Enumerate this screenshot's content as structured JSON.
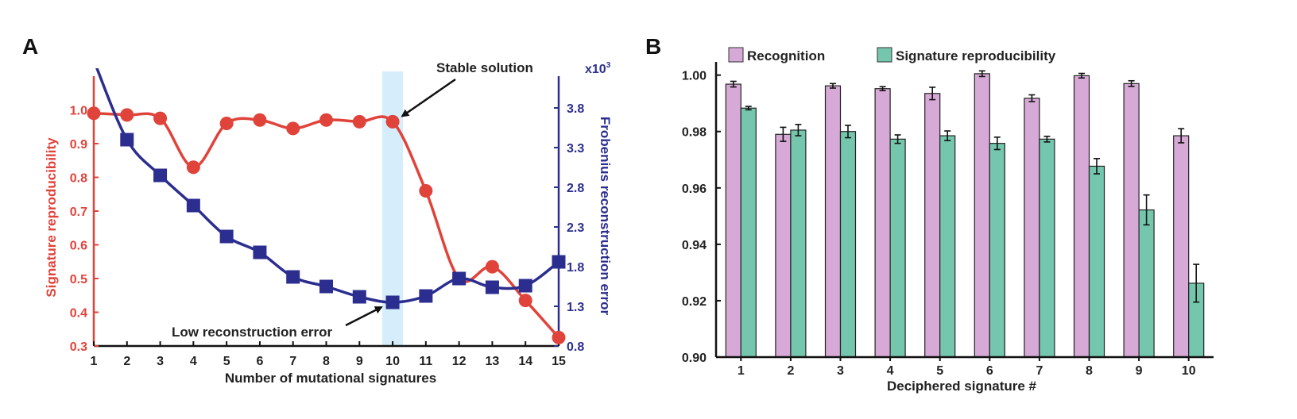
{
  "chart_data": [
    {
      "panel": "A",
      "type": "line",
      "xlabel": "Number of mutational signatures",
      "ylabel": "Signature reproducibility",
      "y2label": "Frobenius reconstruction error",
      "y2_multiplier": "x10",
      "y2_multiplier_exp": "3",
      "x": [
        1,
        2,
        3,
        4,
        5,
        6,
        7,
        8,
        9,
        10,
        11,
        12,
        13,
        14,
        15
      ],
      "x_ticks": [
        "1",
        "2",
        "3",
        "4",
        "5",
        "6",
        "7",
        "8",
        "9",
        "10",
        "11",
        "12",
        "13",
        "14",
        "15"
      ],
      "ylim": [
        0.3,
        1.1
      ],
      "y_ticks": [
        "0.3",
        "0.4",
        "0.5",
        "0.6",
        "0.7",
        "0.8",
        "0.9",
        "1.0"
      ],
      "y2lim": [
        0.8,
        4.2
      ],
      "y2_ticks": [
        "0.8",
        "1.3",
        "1.8",
        "2.3",
        "2.8",
        "3.3",
        "3.8"
      ],
      "series": [
        {
          "name": "Signature reproducibility",
          "axis": "left",
          "color": "#e0433a",
          "marker": "circle",
          "values": [
            0.99,
            0.985,
            0.975,
            0.83,
            0.96,
            0.97,
            0.945,
            0.97,
            0.965,
            0.965,
            0.76,
            0.5,
            0.535,
            0.435,
            0.325
          ]
        },
        {
          "name": "Frobenius reconstruction error",
          "axis": "right",
          "color": "#2b2e8f",
          "marker": "square",
          "values": [
            4.4,
            3.4,
            2.95,
            2.57,
            2.18,
            1.98,
            1.67,
            1.55,
            1.42,
            1.35,
            1.43,
            1.65,
            1.54,
            1.56,
            1.86
          ]
        }
      ],
      "highlight_x": 10,
      "highlight_color": "#d6eefc",
      "annotations": [
        {
          "text": "Stable solution",
          "points_to_x": 10,
          "series": "Signature reproducibility"
        },
        {
          "text": "Low reconstruction error",
          "points_to_x": 10,
          "series": "Frobenius reconstruction error"
        }
      ]
    },
    {
      "panel": "B",
      "type": "bar",
      "xlabel": "Deciphered signature #",
      "ylabel": "",
      "categories": [
        "1",
        "2",
        "3",
        "4",
        "5",
        "6",
        "7",
        "8",
        "9",
        "10"
      ],
      "ylim": [
        0.9,
        1.003
      ],
      "y_ticks": [
        "0.90",
        "0.92",
        "0.94",
        "0.96",
        "0.98",
        "1.00"
      ],
      "legend_position": "top",
      "series": [
        {
          "name": "Recognition",
          "color": "#d7a9d6",
          "values": [
            0.9968,
            0.979,
            0.9962,
            0.9952,
            0.9935,
            1.0005,
            0.9918,
            0.9998,
            0.997,
            0.9785
          ],
          "errors": [
            0.001,
            0.0025,
            0.0008,
            0.0007,
            0.0022,
            0.001,
            0.0012,
            0.0008,
            0.001,
            0.0025
          ]
        },
        {
          "name": "Signature reproducibility",
          "color": "#74c6ad",
          "values": [
            0.9883,
            0.9805,
            0.98,
            0.9773,
            0.9785,
            0.9758,
            0.9773,
            0.9677,
            0.9522,
            0.9262
          ],
          "errors": [
            0.0006,
            0.002,
            0.0022,
            0.0015,
            0.0017,
            0.0022,
            0.001,
            0.0027,
            0.0053,
            0.0067
          ]
        }
      ]
    }
  ]
}
